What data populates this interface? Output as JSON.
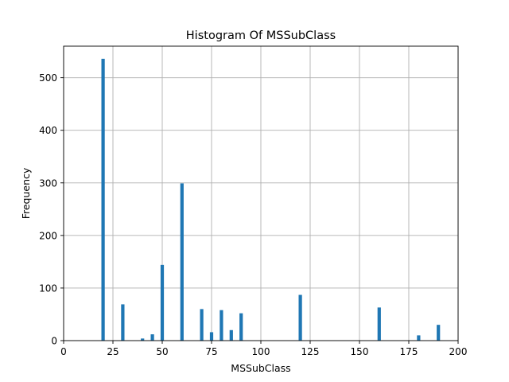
{
  "chart_data": {
    "type": "bar",
    "title": "Histogram Of MSSubClass",
    "xlabel": "MSSubClass",
    "ylabel": "Frequency",
    "xlim": [
      0,
      200
    ],
    "ylim": [
      0,
      560
    ],
    "xticks": [
      0,
      25,
      50,
      75,
      100,
      125,
      150,
      175,
      200
    ],
    "yticks": [
      0,
      100,
      200,
      300,
      400,
      500
    ],
    "grid": true,
    "bar_color": "#1f77b4",
    "bin_width": 1.7,
    "bins": [
      {
        "x": 20,
        "value": 536
      },
      {
        "x": 30,
        "value": 69
      },
      {
        "x": 40,
        "value": 4
      },
      {
        "x": 45,
        "value": 12
      },
      {
        "x": 50,
        "value": 144
      },
      {
        "x": 60,
        "value": 299
      },
      {
        "x": 70,
        "value": 60
      },
      {
        "x": 75,
        "value": 16
      },
      {
        "x": 80,
        "value": 58
      },
      {
        "x": 85,
        "value": 20
      },
      {
        "x": 90,
        "value": 52
      },
      {
        "x": 120,
        "value": 87
      },
      {
        "x": 160,
        "value": 63
      },
      {
        "x": 180,
        "value": 10
      },
      {
        "x": 190,
        "value": 30
      }
    ]
  }
}
